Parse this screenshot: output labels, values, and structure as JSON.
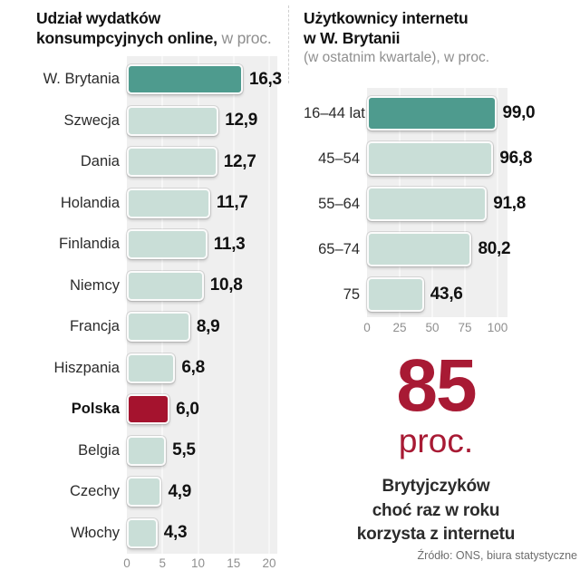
{
  "colors": {
    "bar_highlight": "#4e9b8e",
    "bar_normal": "#c9ded7",
    "bar_negative": "#a5132e",
    "big_stat": "#a81a34",
    "plot_background": "#efefef"
  },
  "chart_data": [
    {
      "type": "bar",
      "orientation": "horizontal",
      "title": "Udział wydatków konsumpcyjnych online, w proc.",
      "title_line1": "Udział wydatków",
      "title_line2_bold": "konsumpcyjnych online,",
      "title_suffix": " w proc.",
      "categories": [
        "W. Brytania",
        "Szwecja",
        "Dania",
        "Holandia",
        "Finlandia",
        "Niemcy",
        "Francja",
        "Hiszpania",
        "Polska",
        "Belgia",
        "Czechy",
        "Włochy"
      ],
      "values": [
        16.3,
        12.9,
        12.7,
        11.7,
        11.3,
        10.8,
        8.9,
        6.8,
        6.0,
        5.5,
        4.9,
        4.3
      ],
      "value_labels": [
        "16,3",
        "12,9",
        "12,7",
        "11,7",
        "11,3",
        "10,8",
        "8,9",
        "6,8",
        "6,0",
        "5,5",
        "4,9",
        "4,3"
      ],
      "highlight_category": "W. Brytania",
      "negative_category": "Polska",
      "x_ticks": [
        0,
        5,
        10,
        15,
        20
      ],
      "xlim": [
        0,
        20
      ],
      "grid": true,
      "legend": false
    },
    {
      "type": "bar",
      "orientation": "horizontal",
      "title": "Użytkownicy internetu w W. Brytanii (w ostatnim kwartale), w proc.",
      "title_line1": "Użytkownicy internetu",
      "title_line2": "w W. Brytanii",
      "subtitle": "(w ostatnim kwartale), w proc.",
      "categories": [
        "16–44 lat",
        "45–54",
        "55–64",
        "65–74",
        "75"
      ],
      "values": [
        99.0,
        96.8,
        91.8,
        80.2,
        43.6
      ],
      "value_labels": [
        "99,0",
        "96,8",
        "91,8",
        "80,2",
        "43,6"
      ],
      "highlight_category": "16–44 lat",
      "negative_category": null,
      "x_ticks": [
        0,
        25,
        50,
        75,
        100
      ],
      "xlim": [
        0,
        100
      ],
      "grid": true,
      "legend": false
    }
  ],
  "big_stat": {
    "number": "85",
    "unit": "proc.",
    "caption_lines": [
      "Brytyjczyków",
      "choć raz w roku",
      "korzysta z internetu"
    ]
  },
  "source": "Źródło: ONS, biura statystyczne"
}
